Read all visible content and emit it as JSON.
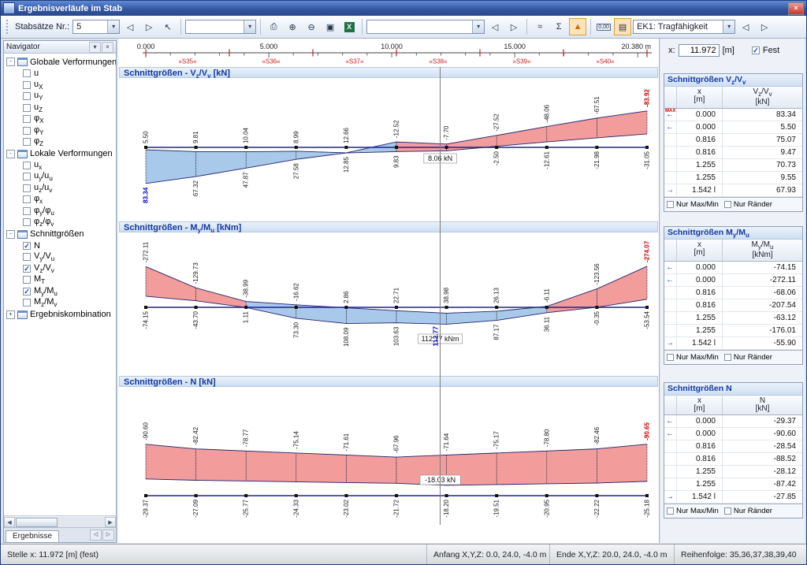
{
  "window": {
    "title": "Ergebnisverläufe im Stab"
  },
  "icons": {
    "dropdown": "▾",
    "prev": "◁",
    "next": "▷",
    "pointer": "↖",
    "print": "⎙",
    "zoom_in": "⊕",
    "zoom_out": "⊖",
    "zoom_window": "▣",
    "excel": "X",
    "diagram": "≈",
    "sum": "Σ",
    "extremes": "▲",
    "decimals": "0,00",
    "panel": "▤",
    "close": "×",
    "pin": "▾",
    "caption_close": "×",
    "scroll_left": "◀",
    "scroll_right": "▶",
    "arrow_left": "←",
    "arrow_right": "→",
    "check": "✓"
  },
  "toolbar": {
    "stabsatz_label": "Stabsätze Nr.:",
    "stabsatz_value": "5",
    "view_combo": "",
    "display_combo": "",
    "result_combo": "EK1: Tragfähigkeit"
  },
  "navigator": {
    "title": "Navigator",
    "bottom_tab": "Ergebnisse",
    "groups": [
      {
        "label_html": "Globale Verformungen",
        "collapsed": false,
        "items": [
          {
            "html": "u",
            "checked": false
          },
          {
            "html": "u<sub>X</sub>",
            "checked": false
          },
          {
            "html": "u<sub>Y</sub>",
            "checked": false
          },
          {
            "html": "u<sub>Z</sub>",
            "checked": false
          },
          {
            "html": "φ<sub>X</sub>",
            "checked": false
          },
          {
            "html": "φ<sub>Y</sub>",
            "checked": false
          },
          {
            "html": "φ<sub>Z</sub>",
            "checked": false
          }
        ]
      },
      {
        "label_html": "Lokale Verformungen",
        "collapsed": false,
        "items": [
          {
            "html": "u<sub>x</sub>",
            "checked": false
          },
          {
            "html": "u<sub>y</sub>/u<sub>u</sub>",
            "checked": false
          },
          {
            "html": "u<sub>z</sub>/u<sub>v</sub>",
            "checked": false
          },
          {
            "html": "φ<sub>x</sub>",
            "checked": false
          },
          {
            "html": "φ<sub>y</sub>/φ<sub>u</sub>",
            "checked": false
          },
          {
            "html": "φ<sub>z</sub>/φ<sub>v</sub>",
            "checked": false
          }
        ]
      },
      {
        "label_html": "Schnittgrößen",
        "collapsed": false,
        "items": [
          {
            "html": "N",
            "checked": true
          },
          {
            "html": "V<sub>y</sub>/V<sub>u</sub>",
            "checked": false
          },
          {
            "html": "V<sub>z</sub>/V<sub>v</sub>",
            "checked": true
          },
          {
            "html": "M<sub>T</sub>",
            "checked": false
          },
          {
            "html": "M<sub>y</sub>/M<sub>u</sub>",
            "checked": true
          },
          {
            "html": "M<sub>z</sub>/M<sub>v</sub>",
            "checked": false
          }
        ]
      },
      {
        "label_html": "Ergebniskombination",
        "collapsed": true,
        "items": []
      }
    ]
  },
  "ruler": {
    "length": 20.38,
    "major_ticks": [
      {
        "x": 0,
        "label": "0.000"
      },
      {
        "x": 5,
        "label": "5.000"
      },
      {
        "x": 10,
        "label": "10.000"
      },
      {
        "x": 15,
        "label": "15.000"
      },
      {
        "x": 20.38,
        "label": "20.380 m"
      }
    ],
    "spans": [
      {
        "label": "»S35«"
      },
      {
        "label": "»S36«"
      },
      {
        "label": "»S37«"
      },
      {
        "label": "»S38«"
      },
      {
        "label": "»S39«"
      },
      {
        "label": "»S40«"
      }
    ]
  },
  "position": {
    "label": "x:",
    "value": "11.972",
    "unit": "[m]",
    "fest_label": "Fest",
    "fest_checked": true
  },
  "chart_data": [
    {
      "type": "area",
      "title": "Schnittgrößen - Vz/Vv [kN]",
      "title_html": "Schnittgrößen - V<sub>z</sub>/V<sub>v</sub> [kN]",
      "unit": "kN",
      "x_unit": "m",
      "ylim": [
        -90,
        90
      ],
      "x": [
        0,
        2.038,
        4.076,
        6.114,
        8.152,
        10.19,
        12.228,
        14.266,
        16.304,
        18.342,
        20.38
      ],
      "series": [
        {
          "name": "max",
          "values": [
            83.34,
            67.32,
            47.87,
            27.58,
            12.85,
            9.83,
            8.06,
            -2.5,
            -12.61,
            -21.98,
            -31.05
          ]
        },
        {
          "name": "min",
          "values": [
            5.5,
            9.81,
            10.04,
            8.99,
            12.66,
            -12.52,
            -7.7,
            -27.52,
            -48.06,
            -67.51,
            -83.92
          ]
        }
      ],
      "cursor": {
        "x": 11.972,
        "label": "8.06 kN"
      },
      "extreme_max": {
        "index": 0,
        "value": "83.34"
      },
      "extreme_min": {
        "index": 10,
        "value": "-83.92"
      }
    },
    {
      "type": "area",
      "title": "Schnittgrößen - My/Mu [kNm]",
      "title_html": "Schnittgrößen - M<sub>y</sub>/M<sub>u</sub> [kNm]",
      "unit": "kNm",
      "x_unit": "m",
      "ylim": [
        -290,
        130
      ],
      "x": [
        0,
        2.038,
        4.076,
        6.114,
        8.152,
        10.19,
        12.228,
        14.266,
        16.304,
        18.342,
        20.38
      ],
      "series": [
        {
          "name": "max",
          "values": [
            -74.15,
            -43.7,
            1.11,
            73.3,
            108.09,
            103.63,
            112.77,
            87.17,
            36.11,
            -0.35,
            -53.54
          ]
        },
        {
          "name": "min",
          "values": [
            -272.11,
            -129.73,
            -38.99,
            -16.62,
            2.86,
            22.71,
            38.98,
            26.13,
            -6.11,
            -123.56,
            -274.07
          ]
        }
      ],
      "cursor": {
        "x": 11.972,
        "label": "112.77 kNm",
        "blue_value": "112.77"
      },
      "extreme_min": {
        "index": 10,
        "value": "-274.07"
      }
    },
    {
      "type": "area",
      "title": "Schnittgrößen - N [kN]",
      "title_html": "Schnittgrößen - N [kN]",
      "unit": "kN",
      "x_unit": "m",
      "ylim": [
        -95,
        0
      ],
      "x": [
        0,
        2.038,
        4.076,
        6.114,
        8.152,
        10.19,
        12.228,
        14.266,
        16.304,
        18.342,
        20.38
      ],
      "series": [
        {
          "name": "max",
          "values": [
            -29.37,
            -27.09,
            -25.77,
            -24.33,
            -23.02,
            -21.72,
            -18.2,
            -19.51,
            -20.95,
            -22.22,
            -25.18
          ]
        },
        {
          "name": "min",
          "values": [
            -90.6,
            -82.42,
            -78.77,
            -75.14,
            -71.61,
            -67.96,
            -71.64,
            -75.17,
            -78.8,
            -82.46,
            -90.65
          ]
        }
      ],
      "cursor": {
        "x": 11.972,
        "label": "-18.03 kN"
      },
      "extreme_min": {
        "index": 10,
        "value": "-90.65"
      }
    }
  ],
  "tables_meta": {
    "max_label": "MAX",
    "x_header_html": "x<br>[m]",
    "footer": [
      "Nur Max/Min",
      "Nur Ränder"
    ]
  },
  "tables": [
    {
      "title_html": "Schnittgrößen V<sub>z</sub>/V<sub>v</sub>",
      "col2_html": "V<sub>z</sub>/V<sub>v</sub><br>[kN]",
      "rows": [
        {
          "marker": "max-left",
          "x": "0.000",
          "v": "83.34"
        },
        {
          "marker": "left",
          "x": "0.000",
          "v": "5.50"
        },
        {
          "marker": "",
          "x": "0.816",
          "v": "75.07"
        },
        {
          "marker": "",
          "x": "0.816",
          "v": "9.47"
        },
        {
          "marker": "",
          "x": "1.255",
          "v": "70.73"
        },
        {
          "marker": "",
          "x": "1.255",
          "v": "9.55"
        },
        {
          "marker": "right",
          "x": "1.542 l",
          "v": "67.93"
        }
      ]
    },
    {
      "title_html": "Schnittgrößen M<sub>y</sub>/M<sub>u</sub>",
      "col2_html": "M<sub>y</sub>/M<sub>u</sub><br>[kNm]",
      "rows": [
        {
          "marker": "left",
          "x": "0.000",
          "v": "-74.15"
        },
        {
          "marker": "left",
          "x": "0.000",
          "v": "-272.11"
        },
        {
          "marker": "",
          "x": "0.816",
          "v": "-68.06"
        },
        {
          "marker": "",
          "x": "0.816",
          "v": "-207.54"
        },
        {
          "marker": "",
          "x": "1.255",
          "v": "-63.12"
        },
        {
          "marker": "",
          "x": "1.255",
          "v": "-176.01"
        },
        {
          "marker": "right",
          "x": "1.542 l",
          "v": "-55.90"
        }
      ]
    },
    {
      "title_html": "Schnittgrößen N",
      "col2_html": "N<br>[kN]",
      "rows": [
        {
          "marker": "left",
          "x": "0.000",
          "v": "-29.37"
        },
        {
          "marker": "left",
          "x": "0.000",
          "v": "-90.60"
        },
        {
          "marker": "",
          "x": "0.816",
          "v": "-28.54"
        },
        {
          "marker": "",
          "x": "0.816",
          "v": "-88.52"
        },
        {
          "marker": "",
          "x": "1.255",
          "v": "-28.12"
        },
        {
          "marker": "",
          "x": "1.255",
          "v": "-87.42"
        },
        {
          "marker": "right",
          "x": "1.542 l",
          "v": "-27.85"
        }
      ]
    }
  ],
  "statusbar": {
    "stelle": "Stelle x: 11.972 [m] (fest)",
    "anfang": "Anfang X,Y,Z:  0.0, 24.0, -4.0 m",
    "ende": "Ende X,Y,Z:  20.0, 24.0, -4.0 m",
    "reihenfolge": "Reihenfolge:  35,36,37,38,39,40"
  },
  "colors": {
    "positive_fill": "#a9c9ea",
    "negative_fill": "#f29c9c",
    "axis": "#2020a0",
    "accent_blue": "#0000cc",
    "accent_red": "#cc0000",
    "header_text": "#1638a0",
    "ruler_red": "#cc2020"
  }
}
